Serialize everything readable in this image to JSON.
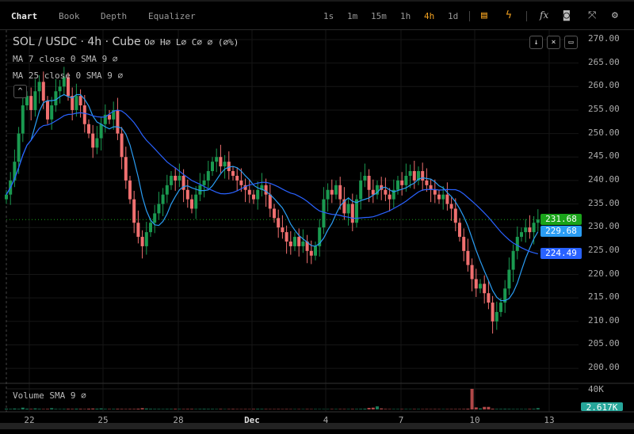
{
  "tabs": [
    {
      "label": "Chart",
      "active": true
    },
    {
      "label": "Book"
    },
    {
      "label": "Depth"
    },
    {
      "label": "Equalizer"
    }
  ],
  "timeframes": [
    {
      "label": "1s"
    },
    {
      "label": "1m"
    },
    {
      "label": "15m"
    },
    {
      "label": "1h"
    },
    {
      "label": "4h",
      "active": true
    },
    {
      "label": "1d"
    }
  ],
  "toolbar_icons": [
    "orders-icon",
    "lightning-icon",
    "indicators-fx-icon",
    "camera-icon",
    "fullscreen-icon",
    "gear-icon"
  ],
  "fx_label": "fx",
  "legend": {
    "title": "SOL / USDC · 4h · Cube",
    "ohlc": "O∅ H∅ L∅ C∅ ∅ (∅%)",
    "ma1": "MA 7 close 0 SMA 9 ∅",
    "ma2": "MA 25 close 0 SMA 9 ∅",
    "volume": "Volume SMA 9 ∅"
  },
  "colors": {
    "up": "#1a9a50",
    "down": "#f07070",
    "ma7": "#2a9df4",
    "ma25": "#2962ff",
    "last": "#1aa31a",
    "accent": "#f0a020",
    "vol_label": "#26a69a"
  },
  "price_labels": {
    "last": "231.68",
    "ma7": "229.68",
    "ma25": "224.49",
    "volume": "2.617K",
    "volume_max": "40K"
  },
  "chart_data": {
    "type": "candlestick",
    "y_ticks": [
      "270.00",
      "265.00",
      "260.00",
      "255.00",
      "250.00",
      "245.00",
      "240.00",
      "235.00",
      "230.00",
      "225.00",
      "220.00",
      "215.00",
      "210.00",
      "205.00",
      "200.00"
    ],
    "ylim": [
      200,
      270
    ],
    "x_ticks": [
      "22",
      "25",
      "28",
      "Dec",
      "4",
      "7",
      "10",
      "13"
    ],
    "interval": "4h",
    "close": [
      237,
      240,
      244,
      250,
      256,
      258,
      255,
      259,
      261,
      257,
      253,
      256,
      259,
      260,
      262,
      258,
      255,
      258,
      256,
      252,
      250,
      247,
      249,
      252,
      254,
      253,
      255,
      250,
      245,
      240,
      236,
      231,
      228,
      226,
      229,
      231,
      233,
      235,
      237,
      239,
      241,
      240,
      241,
      238,
      236,
      234,
      237,
      239,
      240,
      242,
      244,
      245,
      243,
      244,
      242,
      241,
      240,
      239,
      238,
      237,
      236,
      238,
      239,
      237,
      234,
      232,
      230,
      229,
      227,
      226,
      228,
      226,
      227,
      225,
      224,
      226,
      230,
      236,
      238,
      237,
      239,
      236,
      233,
      235,
      231,
      236,
      240,
      241,
      238,
      237,
      239,
      238,
      237,
      236,
      238,
      240,
      239,
      241,
      242,
      240,
      242,
      240,
      239,
      238,
      237,
      236,
      237,
      235,
      234,
      231,
      228,
      225,
      222,
      219,
      217,
      218,
      216,
      214,
      210,
      212,
      214,
      217,
      221,
      225,
      228,
      229,
      230,
      229,
      231,
      231.68
    ],
    "volume": [
      1.5,
      1,
      1.8,
      1,
      3.5,
      1.5,
      1,
      2,
      1.2,
      0.8,
      1,
      2.5,
      1,
      0.8,
      1,
      1.2,
      1,
      1.5,
      1.2,
      0.8,
      1.5,
      1.8,
      1.5,
      2,
      1,
      0.8,
      1,
      1.2,
      1,
      0.8,
      1,
      1,
      1.5,
      2.5,
      1.8,
      1.2,
      1,
      1,
      0.8,
      1,
      1,
      1.2,
      1,
      0.8,
      1,
      1,
      0.8,
      1,
      1.2,
      1,
      1,
      0.8,
      1,
      0.7,
      0.8,
      1,
      0.7,
      0.7,
      0.8,
      0.7,
      1,
      1.2,
      1,
      0.8,
      0.7,
      0.7,
      0.8,
      0.7,
      0.8,
      0.7,
      0.7,
      0.7,
      0.7,
      0.8,
      0.7,
      0.8,
      0.7,
      0.7,
      0.7,
      0.8,
      0.8,
      0.8,
      0.8,
      0.8,
      1,
      1,
      1.2,
      1.5,
      3,
      3.5,
      6,
      2,
      1,
      0.8,
      0.8,
      0.8,
      0.8,
      0.8,
      0.7,
      0.8,
      0.8,
      0.7,
      0.8,
      0.7,
      0.8,
      0.7,
      0.7,
      0.7,
      0.8,
      0.8,
      0.8,
      1,
      1.5,
      40,
      4,
      2,
      5,
      5,
      1.5,
      1,
      1,
      1.2,
      1,
      0.8,
      0.8,
      0.8,
      0.8,
      1,
      1.2,
      2.6
    ]
  }
}
